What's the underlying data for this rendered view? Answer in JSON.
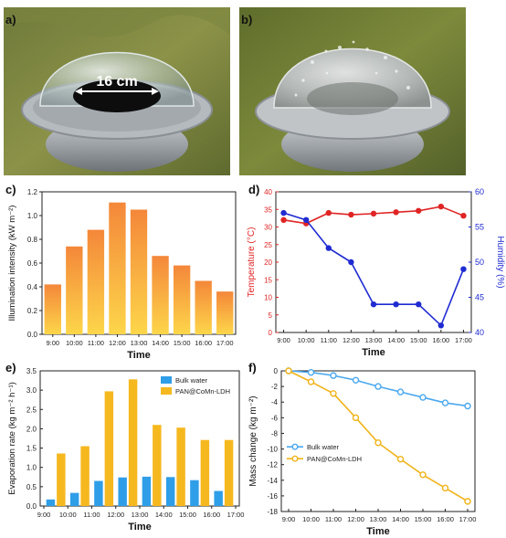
{
  "panels": {
    "a": "a)",
    "b": "b)",
    "c": "c)",
    "d": "d)",
    "e": "e)",
    "f": "f)"
  },
  "photo_a": {
    "dimension_label": "16 cm"
  },
  "colors": {
    "orange_top": "#f4873a",
    "orange_bottom": "#fdd64a",
    "red": "#e02424",
    "blue": "#1f2bd1",
    "bulk_water": "#2f9ee8",
    "pan": "#f6b81f",
    "light_blue_line": "#4aa8ee",
    "gold_line": "#f1b31a"
  },
  "chart_data": [
    {
      "id": "c",
      "type": "bar",
      "categories": [
        "9:00",
        "10:00",
        "11:00",
        "12:00",
        "13:00",
        "14:00",
        "15:00",
        "16:00",
        "17:00"
      ],
      "values": [
        0.42,
        0.74,
        0.88,
        1.11,
        1.05,
        0.66,
        0.58,
        0.45,
        0.36
      ],
      "xlabel": "Time",
      "ylabel": "Illumination intensity (kW m⁻²)",
      "ylim": [
        0,
        1.2
      ],
      "yticks": [
        "0.0",
        "0.2",
        "0.4",
        "0.6",
        "0.8",
        "1.0",
        "1.2"
      ]
    },
    {
      "id": "d",
      "type": "line",
      "x": [
        "9:00",
        "10:00",
        "11:00",
        "12:00",
        "13:00",
        "14:00",
        "15:00",
        "16:00",
        "17:00"
      ],
      "series": [
        {
          "name": "Temperature",
          "axis": "left",
          "values": [
            32,
            31,
            34,
            33.5,
            33.8,
            34.2,
            34.6,
            35.8,
            33.2
          ]
        },
        {
          "name": "Humidity",
          "axis": "right",
          "values": [
            57,
            56,
            52,
            50,
            44,
            44,
            44,
            41,
            49
          ]
        }
      ],
      "xlabel": "Time",
      "ylabel_left": "Temperature (°C)",
      "ylabel_right": "Humidity (%)",
      "ylim_left": [
        0,
        40
      ],
      "ylim_right": [
        40,
        60
      ],
      "yticks_left": [
        "0",
        "5",
        "10",
        "15",
        "20",
        "25",
        "30",
        "35",
        "40"
      ],
      "yticks_right": [
        "40",
        "45",
        "50",
        "55",
        "60"
      ]
    },
    {
      "id": "e",
      "type": "bar",
      "categories": [
        "9:00",
        "10:00",
        "11:00",
        "12:00",
        "13:00",
        "14:00",
        "15:00",
        "16:00",
        "17:00"
      ],
      "series": [
        {
          "name": "Bulk water",
          "values": [
            0.17,
            0.34,
            0.65,
            0.74,
            0.76,
            0.75,
            0.67,
            0.39,
            0.0
          ]
        },
        {
          "name": "PAN@CoMn-LDH",
          "values": [
            1.36,
            1.55,
            2.97,
            3.28,
            2.1,
            2.03,
            1.71,
            1.71,
            0.0
          ]
        }
      ],
      "xlabel": "Time",
      "ylabel": "Evaporation rate (kg m⁻² h⁻¹)",
      "ylim": [
        0,
        3.5
      ],
      "yticks": [
        "0.0",
        "0.5",
        "1.0",
        "1.5",
        "2.0",
        "2.5",
        "3.0",
        "3.5"
      ],
      "legend": "top-left"
    },
    {
      "id": "f",
      "type": "line",
      "x": [
        "9:00",
        "10:00",
        "11:00",
        "12:00",
        "13:00",
        "14:00",
        "15:00",
        "16:00",
        "17:00"
      ],
      "series": [
        {
          "name": "Bulk water",
          "values": [
            0,
            -0.2,
            -0.6,
            -1.2,
            -2.0,
            -2.7,
            -3.4,
            -4.1,
            -4.5
          ]
        },
        {
          "name": "PAN@CoMn-LDH",
          "values": [
            0,
            -1.4,
            -2.9,
            -6.0,
            -9.2,
            -11.3,
            -13.3,
            -15.0,
            -16.7
          ]
        }
      ],
      "xlabel": "Time",
      "ylabel": "Mass change (kg m⁻²)",
      "ylim": [
        -18,
        0
      ],
      "yticks": [
        "0",
        "-2",
        "-4",
        "-6",
        "-8",
        "-10",
        "-12",
        "-14",
        "-16",
        "-18"
      ],
      "legend": "middle-left"
    }
  ]
}
